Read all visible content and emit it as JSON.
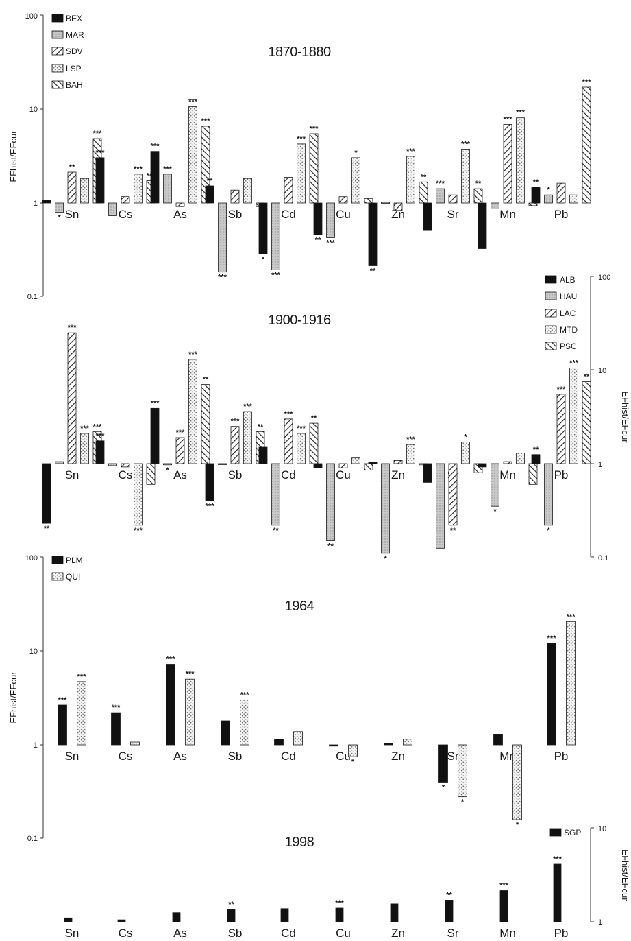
{
  "chart_data": [
    {
      "type": "bar",
      "title": "1870-1880",
      "ylabel": "EFhist/EFcur",
      "y_scale": "log",
      "ylim": [
        0.1,
        100
      ],
      "y_ticks": [
        "100",
        "10",
        "1",
        "0.1"
      ],
      "axis_side": "left",
      "legend_placement": "top-left",
      "categories": [
        "Sn",
        "Cs",
        "As",
        "Sb",
        "Cd",
        "Cu",
        "Zn",
        "Sr",
        "Mn",
        "Pb"
      ],
      "series": [
        {
          "name": "BEX",
          "pattern": "solid",
          "values": [
            1.05,
            3.0,
            3.5,
            1.5,
            0.28,
            0.45,
            0.21,
            0.5,
            0.32,
            1.45
          ],
          "stars": [
            "",
            "***",
            "***",
            "**",
            "*",
            "**",
            "**",
            "",
            "",
            "**"
          ]
        },
        {
          "name": "MAR",
          "pattern": "dots",
          "values": [
            0.78,
            0.72,
            2.0,
            0.18,
            0.19,
            0.42,
            1.0,
            1.4,
            0.85,
            1.2
          ],
          "stars": [
            "*",
            "",
            "***",
            "***",
            "***",
            "***",
            "",
            "***",
            "",
            "*"
          ]
        },
        {
          "name": "SDV",
          "pattern": "hatch-right",
          "values": [
            2.1,
            1.15,
            0.9,
            1.35,
            1.85,
            1.15,
            0.82,
            1.2,
            6.8,
            1.6
          ],
          "stars": [
            "**",
            "",
            "",
            "",
            "",
            "",
            "",
            "",
            "***",
            ""
          ]
        },
        {
          "name": "LSP",
          "pattern": "speckle",
          "values": [
            1.8,
            2.0,
            10.5,
            1.8,
            4.2,
            3.0,
            3.1,
            3.7,
            8.0,
            1.2
          ],
          "stars": [
            "",
            "***",
            "***",
            "",
            "***",
            "*",
            "***",
            "***",
            "***",
            ""
          ]
        },
        {
          "name": "BAH",
          "pattern": "hatch-left",
          "values": [
            4.8,
            1.7,
            6.5,
            0.9,
            5.4,
            1.1,
            1.65,
            1.4,
            0.92,
            17.0
          ],
          "stars": [
            "***",
            "***",
            "***",
            "",
            "***",
            "",
            "**",
            "**",
            "",
            "***"
          ]
        }
      ]
    },
    {
      "type": "bar",
      "title": "1900-1916",
      "ylabel": "EFhist/EFcur",
      "y_scale": "log",
      "ylim": [
        0.1,
        100
      ],
      "y_ticks": [
        "100",
        "10",
        "1",
        "0.1"
      ],
      "axis_side": "right",
      "legend_placement": "top-right",
      "categories": [
        "Sn",
        "Cs",
        "As",
        "Sb",
        "Cd",
        "Cu",
        "Zn",
        "Sr",
        "Mn",
        "Pb"
      ],
      "series": [
        {
          "name": "ALB",
          "pattern": "solid",
          "values": [
            0.23,
            1.75,
            3.9,
            0.4,
            1.5,
            0.9,
            1.03,
            0.63,
            0.92,
            1.25
          ],
          "stars": [
            "**",
            "***",
            "***",
            "***",
            "",
            "",
            "",
            "",
            "",
            "**"
          ]
        },
        {
          "name": "HAU",
          "pattern": "dots",
          "values": [
            1.05,
            0.95,
            0.97,
            1.0,
            0.22,
            0.15,
            0.11,
            0.125,
            0.35,
            0.22
          ],
          "stars": [
            "",
            "",
            "*",
            "",
            "**",
            "**",
            "*",
            "",
            "*",
            "*"
          ]
        },
        {
          "name": "LAC",
          "pattern": "hatch-right",
          "values": [
            25.0,
            0.92,
            1.9,
            2.5,
            3.0,
            0.9,
            1.08,
            0.22,
            1.05,
            5.5
          ],
          "stars": [
            "***",
            "",
            "***",
            "***",
            "***",
            "",
            "",
            "**",
            "",
            "***"
          ]
        },
        {
          "name": "MTD",
          "pattern": "speckle",
          "values": [
            2.1,
            0.22,
            13.0,
            3.6,
            2.1,
            1.15,
            1.6,
            1.7,
            1.3,
            10.5
          ],
          "stars": [
            "***",
            "***",
            "***",
            "***",
            "***",
            "",
            "***",
            "*",
            "",
            "***"
          ]
        },
        {
          "name": "PSC",
          "pattern": "hatch-left",
          "values": [
            2.2,
            0.6,
            7.0,
            2.2,
            2.7,
            0.85,
            0.97,
            0.8,
            0.6,
            7.5
          ],
          "stars": [
            "***",
            "",
            "**",
            "**",
            "**",
            "",
            "",
            "",
            "",
            "**"
          ]
        }
      ]
    },
    {
      "type": "bar",
      "title": "1964",
      "ylabel": "EFhist/EFcur",
      "y_scale": "log",
      "ylim": [
        0.1,
        100
      ],
      "y_ticks": [
        "100",
        "10",
        "1",
        "0.1"
      ],
      "axis_side": "left",
      "legend_placement": "top-left",
      "categories": [
        "Sn",
        "Cs",
        "As",
        "Sb",
        "Cd",
        "Cu",
        "Zn",
        "Sr",
        "Mn",
        "Pb"
      ],
      "series": [
        {
          "name": "PLM",
          "pattern": "solid",
          "values": [
            2.65,
            2.2,
            7.2,
            1.8,
            1.15,
            0.97,
            1.03,
            0.4,
            1.3,
            12.0
          ],
          "stars": [
            "***",
            "***",
            "***",
            "",
            "",
            "",
            "",
            "*",
            "",
            "***"
          ]
        },
        {
          "name": "QUI",
          "pattern": "speckle",
          "values": [
            4.7,
            1.07,
            5.0,
            3.0,
            1.38,
            0.75,
            1.15,
            0.28,
            0.16,
            20.5
          ],
          "stars": [
            "***",
            "",
            "***",
            "***",
            "",
            "*",
            "",
            "*",
            "*",
            "***"
          ]
        }
      ]
    },
    {
      "type": "bar",
      "title": "1998",
      "ylabel": "EFhist/EFcur",
      "y_scale": "log",
      "ylim": [
        1,
        10
      ],
      "y_ticks": [
        "10",
        "1"
      ],
      "axis_side": "right",
      "legend_placement": "top-right",
      "categories": [
        "Sn",
        "Cs",
        "As",
        "Sb",
        "Cd",
        "Cu",
        "Zn",
        "Sr",
        "Mn",
        "Pb"
      ],
      "series": [
        {
          "name": "SGP",
          "pattern": "solid",
          "values": [
            1.1,
            1.05,
            1.25,
            1.35,
            1.38,
            1.4,
            1.55,
            1.7,
            2.15,
            4.1
          ],
          "stars": [
            "",
            "",
            "",
            "**",
            "",
            "***",
            "",
            "**",
            "***",
            "***"
          ]
        }
      ]
    }
  ]
}
